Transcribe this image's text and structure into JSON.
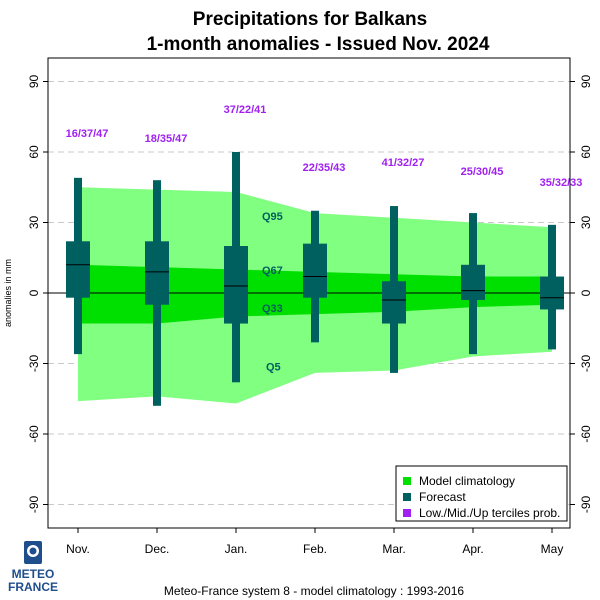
{
  "chart_data": {
    "type": "box",
    "title_line1": "Precipitations  for  Balkans",
    "title_line2": "1-month anomalies    -    Issued Nov. 2024",
    "ylabel": "anomalies in mm",
    "ylim": [
      -100,
      100
    ],
    "yticks": [
      -90,
      -60,
      -30,
      0,
      30,
      60,
      90
    ],
    "grid": true,
    "categories": [
      "Nov.",
      "Dec.",
      "Jan.",
      "Feb.",
      "Mar.",
      "Apr.",
      "May"
    ],
    "model_climatology": {
      "Q5": [
        -46,
        -44,
        -47,
        -34,
        -33,
        -27,
        -25
      ],
      "Q33": [
        -13,
        -13,
        -10,
        -9,
        -8,
        -6,
        -5
      ],
      "Q67": [
        12,
        11,
        10,
        9,
        8,
        7,
        7
      ],
      "Q95": [
        45,
        44,
        43,
        34,
        32,
        30,
        28
      ]
    },
    "forecast": {
      "min": [
        -26,
        -48,
        -38,
        -21,
        -34,
        -26,
        -24
      ],
      "q25": [
        -2,
        -5,
        -13,
        -2,
        -13,
        -3,
        -7
      ],
      "median": [
        12,
        9,
        3,
        7,
        -3,
        1,
        -2
      ],
      "q75": [
        22,
        22,
        20,
        21,
        5,
        12,
        7
      ],
      "max": [
        49,
        48,
        60,
        35,
        37,
        34,
        29
      ]
    },
    "tercile_probs": [
      "16/37/47",
      "18/35/47",
      "37/22/41",
      "22/35/43",
      "41/32/27",
      "25/30/45",
      "35/32/33"
    ],
    "quantile_labels": [
      "Q95",
      "Q67",
      "Q33",
      "Q5"
    ],
    "legend": {
      "position": "bottom-right",
      "entries": [
        "Model climatology",
        "Forecast",
        "Low./Mid./Up terciles prob."
      ]
    },
    "footer": "Meteo-France system 8  -  model climatology : 1993-2016",
    "logo_line1": "METEO",
    "logo_line2": "FRANCE"
  },
  "colors": {
    "outer_band": "#80ff80",
    "inner_band": "#00e000",
    "forecast": "#005f5f",
    "tercile_text": "#a020f0",
    "grid": "#c8c8c8",
    "logo": "#1f4e8c"
  }
}
